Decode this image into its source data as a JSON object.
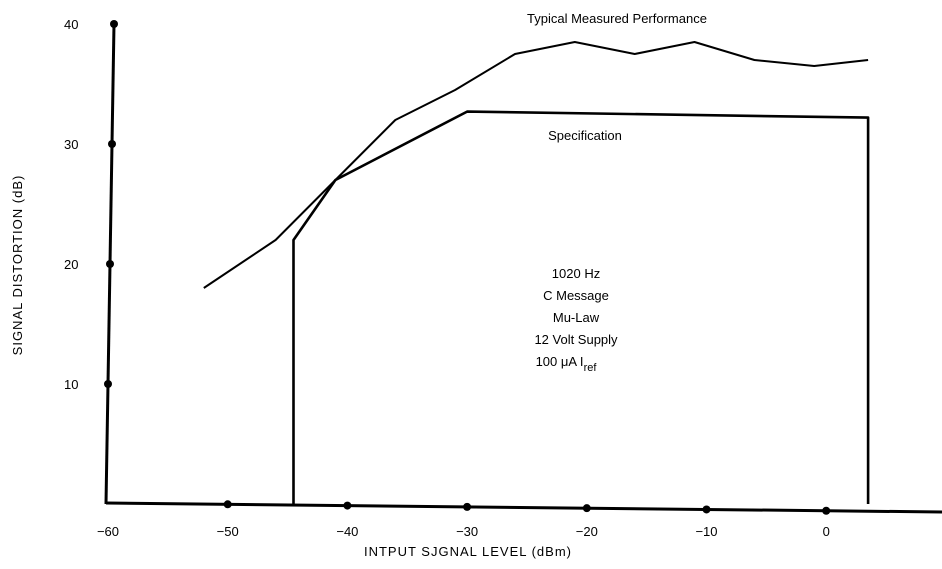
{
  "chart_data": {
    "type": "line",
    "title": "",
    "xlabel": "INTPUT SJGNAL LEVEL (dBm)",
    "ylabel": "SIGNAL DISTORTION (dB)",
    "xlim": [
      -60,
      10
    ],
    "ylim": [
      0,
      40
    ],
    "x_ticks": [
      -60,
      -50,
      -40,
      -30,
      -20,
      -10,
      0
    ],
    "x_tick_labels": [
      "−60",
      "−50",
      "−40",
      "−30",
      "−20",
      "−10",
      "0"
    ],
    "y_ticks": [
      10,
      20,
      30,
      40
    ],
    "y_tick_labels": [
      "10",
      "20",
      "30",
      "40"
    ],
    "grid": false,
    "series": [
      {
        "name": "Typical Measured Performance",
        "x": [
          -52,
          -46,
          -41,
          -36,
          -31,
          -26,
          -21,
          -16,
          -11,
          -6,
          -1,
          3.5
        ],
        "y": [
          18,
          22,
          27,
          32,
          34.5,
          37.5,
          38.5,
          37.5,
          38.5,
          37,
          36.5,
          37
        ]
      },
      {
        "name": "Specification",
        "x": [
          -44.5,
          -44.5,
          -41,
          -30,
          3.5,
          3.5
        ],
        "y": [
          0,
          22,
          27,
          32.7,
          32.2,
          0
        ]
      }
    ],
    "annotations": [
      {
        "lines": [
          "1020 Hz",
          "C Message",
          "Mu-Law",
          "12 Volt Supply"
        ]
      },
      {
        "lines": [
          "100 μA I"
        ],
        "subscript": "ref"
      }
    ]
  }
}
